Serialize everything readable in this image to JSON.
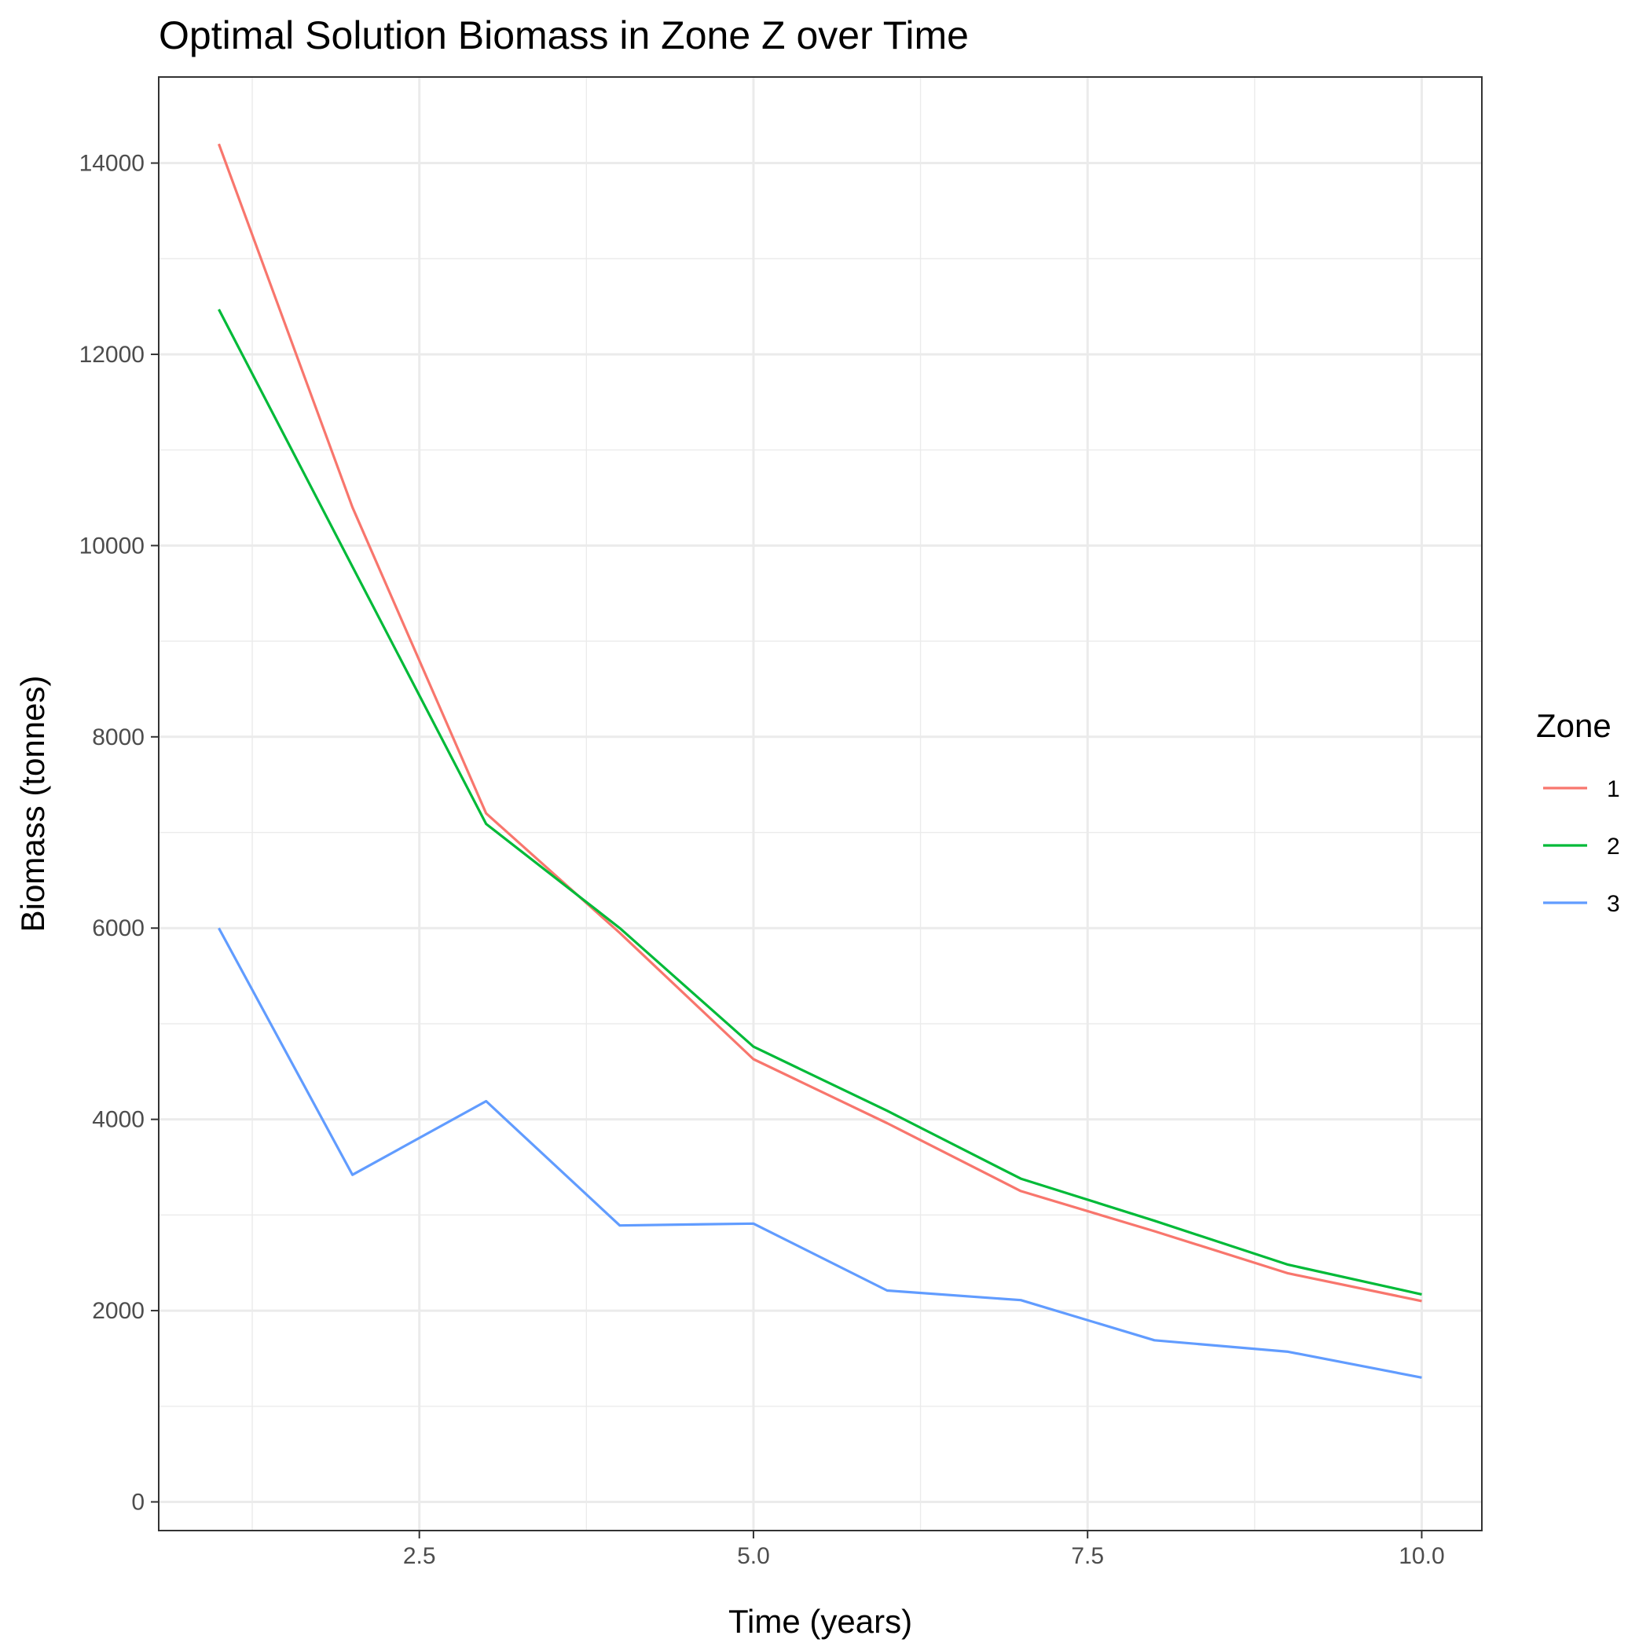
{
  "chart_data": {
    "type": "line",
    "title": "Optimal Solution Biomass in Zone Z over Time",
    "xlabel": "Time (years)",
    "ylabel": "Biomass (tonnes)",
    "xlim": [
      0.55,
      10.45
    ],
    "ylim": [
      -300,
      14900
    ],
    "x_ticks": [
      2.5,
      5.0,
      7.5,
      10.0
    ],
    "x_tick_labels": [
      "2.5",
      "5.0",
      "7.5",
      "10.0"
    ],
    "x_minor_ticks": [
      1.25,
      3.75,
      6.25,
      8.75
    ],
    "y_ticks": [
      0,
      2000,
      4000,
      6000,
      8000,
      10000,
      12000,
      14000
    ],
    "y_tick_labels": [
      "0",
      "2000",
      "4000",
      "6000",
      "8000",
      "10000",
      "12000",
      "14000"
    ],
    "y_minor_ticks": [
      1000,
      3000,
      5000,
      7000,
      9000,
      11000,
      13000
    ],
    "grid": true,
    "legend_title": "Zone",
    "legend_position": "right",
    "x": [
      1,
      2,
      3,
      4,
      5,
      6,
      7,
      8,
      9,
      10
    ],
    "series": [
      {
        "name": "1",
        "color": "#F8766D",
        "values": [
          14200,
          10400,
          7200,
          5950,
          4630,
          3960,
          3250,
          2830,
          2390,
          2100
        ]
      },
      {
        "name": "2",
        "color": "#00BA38",
        "values": [
          12470,
          9780,
          7090,
          6000,
          4760,
          4090,
          3380,
          2940,
          2480,
          2170
        ]
      },
      {
        "name": "3",
        "color": "#619CFF",
        "values": [
          6000,
          3420,
          4190,
          2890,
          2910,
          2210,
          2110,
          1690,
          1570,
          1300
        ]
      }
    ]
  }
}
